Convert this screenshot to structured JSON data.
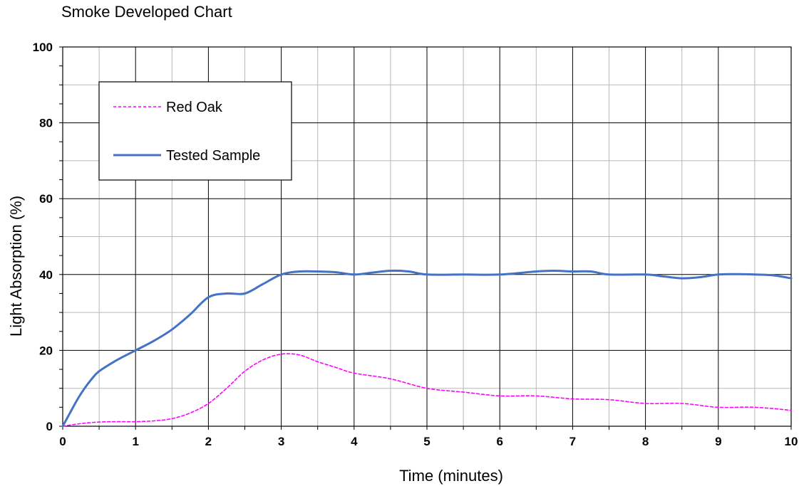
{
  "chart_data": {
    "type": "line",
    "title": "Smoke Developed Chart",
    "xlabel": "Time  (minutes)",
    "ylabel": "Light Absorption (%)",
    "xlim": [
      0,
      10
    ],
    "ylim": [
      0,
      100
    ],
    "x_ticks": [
      0,
      1,
      2,
      3,
      4,
      5,
      6,
      7,
      8,
      9,
      10
    ],
    "y_ticks": [
      0,
      20,
      40,
      60,
      80,
      100
    ],
    "grid": true,
    "legend_position": "top-left",
    "series": [
      {
        "name": "Red Oak",
        "color": "#ff00ff",
        "style": "dashed",
        "x": [
          0,
          0.25,
          0.5,
          0.75,
          1.0,
          1.25,
          1.5,
          1.75,
          2.0,
          2.25,
          2.5,
          2.75,
          3.0,
          3.25,
          3.5,
          3.75,
          4.0,
          4.5,
          5.0,
          5.5,
          6.0,
          6.5,
          7.0,
          7.5,
          8.0,
          8.5,
          9.0,
          9.5,
          10.0
        ],
        "y": [
          0,
          0.7,
          1.1,
          1.2,
          1.2,
          1.4,
          2.0,
          3.5,
          6.0,
          10.0,
          14.5,
          17.5,
          19.0,
          18.8,
          17.0,
          15.5,
          14.0,
          12.5,
          10.0,
          9.0,
          8.0,
          8.0,
          7.2,
          7.0,
          6.0,
          6.0,
          5.0,
          5.0,
          4.2
        ]
      },
      {
        "name": "Tested Sample",
        "color": "#4472c4",
        "style": "solid",
        "x": [
          0,
          0.1,
          0.2,
          0.3,
          0.4,
          0.5,
          0.75,
          1.0,
          1.25,
          1.5,
          1.75,
          2.0,
          2.25,
          2.5,
          2.75,
          3.0,
          3.25,
          3.5,
          3.75,
          4.0,
          4.25,
          4.5,
          4.75,
          5.0,
          5.5,
          6.0,
          6.5,
          6.75,
          7.0,
          7.25,
          7.5,
          8.0,
          8.25,
          8.5,
          8.75,
          9.0,
          9.25,
          9.5,
          9.75,
          10.0
        ],
        "y": [
          0,
          3.5,
          7.0,
          10.0,
          12.5,
          14.5,
          17.5,
          20.0,
          22.5,
          25.5,
          29.5,
          34.0,
          35.0,
          35.0,
          37.5,
          40.0,
          40.8,
          40.8,
          40.6,
          40.0,
          40.5,
          41.0,
          40.8,
          40.0,
          40.0,
          40.0,
          40.8,
          41.0,
          40.8,
          40.8,
          40.0,
          40.0,
          39.5,
          39.0,
          39.3,
          40.0,
          40.1,
          40.0,
          39.8,
          39.0
        ]
      }
    ]
  }
}
